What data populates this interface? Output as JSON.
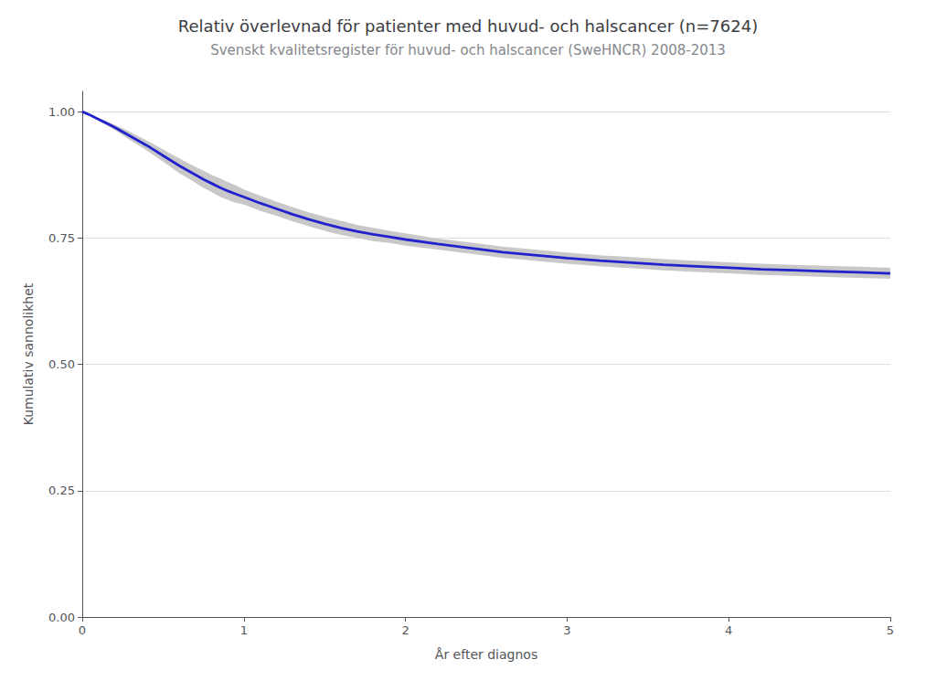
{
  "chart_data": {
    "type": "line",
    "title": "Relativ överlevnad för patienter med huvud- och halscancer (n=7624)",
    "subtitle": "Svenskt kvalitetsregister för huvud- och halscancer (SweHNCR) 2008-2013",
    "xlabel": "År efter diagnos",
    "ylabel": "Kumulativ sannolikhet",
    "x": [
      0.0,
      0.05,
      0.1,
      0.15,
      0.2,
      0.25,
      0.3,
      0.35,
      0.4,
      0.45,
      0.5,
      0.55,
      0.6,
      0.65,
      0.7,
      0.75,
      0.8,
      0.85,
      0.9,
      0.95,
      1.0,
      1.1,
      1.2,
      1.3,
      1.4,
      1.5,
      1.6,
      1.7,
      1.8,
      1.9,
      2.0,
      2.2,
      2.4,
      2.6,
      2.8,
      3.0,
      3.2,
      3.4,
      3.6,
      3.8,
      4.0,
      4.2,
      4.4,
      4.6,
      4.8,
      5.0
    ],
    "series": [
      {
        "type": "band",
        "color": "#c8c8c8",
        "upper": [
          1.0,
          0.994,
          0.988,
          0.981,
          0.974,
          0.967,
          0.959,
          0.951,
          0.943,
          0.934,
          0.925,
          0.916,
          0.908,
          0.899,
          0.891,
          0.883,
          0.875,
          0.868,
          0.861,
          0.854,
          0.846,
          0.834,
          0.822,
          0.811,
          0.801,
          0.792,
          0.784,
          0.776,
          0.77,
          0.764,
          0.759,
          0.749,
          0.741,
          0.733,
          0.727,
          0.721,
          0.716,
          0.712,
          0.708,
          0.705,
          0.702,
          0.699,
          0.697,
          0.695,
          0.693,
          0.691
        ],
        "lower": [
          1.0,
          0.992,
          0.982,
          0.973,
          0.964,
          0.953,
          0.943,
          0.933,
          0.923,
          0.912,
          0.901,
          0.89,
          0.878,
          0.869,
          0.859,
          0.849,
          0.841,
          0.832,
          0.825,
          0.82,
          0.816,
          0.804,
          0.794,
          0.783,
          0.773,
          0.764,
          0.756,
          0.75,
          0.744,
          0.74,
          0.735,
          0.727,
          0.719,
          0.711,
          0.705,
          0.699,
          0.694,
          0.69,
          0.686,
          0.683,
          0.68,
          0.677,
          0.675,
          0.673,
          0.671,
          0.669
        ]
      },
      {
        "type": "line",
        "color": "#2222cc",
        "values": [
          1.0,
          0.993,
          0.985,
          0.977,
          0.969,
          0.96,
          0.951,
          0.942,
          0.933,
          0.923,
          0.913,
          0.903,
          0.893,
          0.884,
          0.875,
          0.866,
          0.858,
          0.85,
          0.843,
          0.837,
          0.831,
          0.819,
          0.808,
          0.797,
          0.787,
          0.778,
          0.77,
          0.763,
          0.757,
          0.752,
          0.747,
          0.738,
          0.73,
          0.722,
          0.716,
          0.71,
          0.705,
          0.701,
          0.697,
          0.694,
          0.691,
          0.688,
          0.686,
          0.684,
          0.682,
          0.68
        ]
      }
    ],
    "xlim": [
      0,
      5
    ],
    "ylim": [
      0.0,
      1.04
    ],
    "xticks": [
      0,
      1,
      2,
      3,
      4,
      5
    ],
    "yticks": [
      {
        "value": 0.0,
        "label": "0.00"
      },
      {
        "value": 0.25,
        "label": "0.25"
      },
      {
        "value": 0.5,
        "label": "0.50"
      },
      {
        "value": 0.75,
        "label": "0.75"
      },
      {
        "value": 1.0,
        "label": "1.00"
      }
    ],
    "grid": true
  }
}
